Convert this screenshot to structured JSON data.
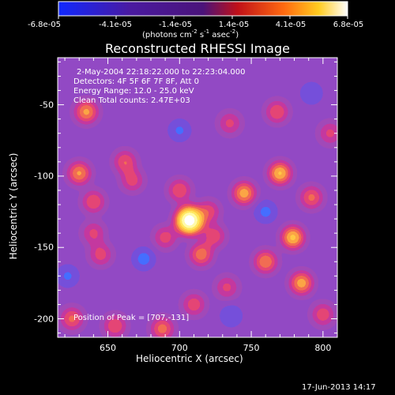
{
  "colorbar": {
    "ticks": [
      "-6.8e-05",
      "-4.1e-05",
      "-1.4e-05",
      "1.4e-05",
      "4.1e-05",
      "6.8e-05"
    ],
    "units": "(photons cm",
    "units_exp1": "-2",
    "units_mid": " s",
    "units_exp2": "-1",
    "units_end": " asec",
    "units_exp3": "-2",
    "units_close": ")"
  },
  "annotations": {
    "time": "2-May-2004 22:18:22.000 to 22:23:04.000",
    "detectors": "Detectors: 4F 5F 6F 7F 8F, Att 0",
    "energy": "Energy Range: 12.0 - 25.0 keV",
    "clean": "Clean    Total counts: 2.47E+03",
    "peak": "Position of Peak = [707,-131]"
  },
  "footer": {
    "date": "17-Jun-2013 14:17"
  },
  "chart_data": {
    "type": "heatmap",
    "title": "Reconstructed RHESSI Image",
    "xlabel": "Heliocentric X (arcsec)",
    "ylabel": "Heliocentric Y (arcsec)",
    "xlim": [
      615,
      810
    ],
    "ylim": [
      -213,
      -17
    ],
    "xticks": [
      650,
      700,
      750,
      800
    ],
    "yticks": [
      -50,
      -100,
      -150,
      -200
    ],
    "zlim": [
      -6.8e-05,
      6.8e-05
    ],
    "colormap": "blue-purple-red-yellow-white",
    "peak": [
      707,
      -131
    ],
    "colors": {
      "neg_max": "#1028ff",
      "neg_mid": "#4a1aa0",
      "zero": "#4a137a",
      "mid": "#e01010",
      "high": "#ff9a10",
      "max": "#ffffff"
    },
    "features": [
      {
        "name": "main-peak",
        "x": 707,
        "y": -131,
        "value": 6.8e-05
      },
      {
        "name": "source",
        "x": 700,
        "y": -110,
        "value": 3.6e-05
      },
      {
        "name": "source",
        "x": 715,
        "y": -155,
        "value": 4.2e-05
      },
      {
        "name": "source",
        "x": 724,
        "y": -142,
        "value": 3.4e-05
      },
      {
        "name": "source",
        "x": 690,
        "y": -143,
        "value": 3.2e-05
      },
      {
        "name": "source",
        "x": 745,
        "y": -112,
        "value": 4.8e-05
      },
      {
        "name": "source",
        "x": 770,
        "y": -98,
        "value": 5.2e-05
      },
      {
        "name": "source",
        "x": 792,
        "y": -115,
        "value": 3.8e-05
      },
      {
        "name": "source",
        "x": 630,
        "y": -98,
        "value": 4.5e-05
      },
      {
        "name": "source",
        "x": 640,
        "y": -118,
        "value": 3.6e-05
      },
      {
        "name": "source",
        "x": 635,
        "y": -55,
        "value": 4.6e-05
      },
      {
        "name": "source",
        "x": 662,
        "y": -90,
        "value": 3.6e-05
      },
      {
        "name": "source",
        "x": 667,
        "y": -103,
        "value": 3.2e-05
      },
      {
        "name": "source",
        "x": 735,
        "y": -63,
        "value": 3e-05
      },
      {
        "name": "source",
        "x": 768,
        "y": -55,
        "value": 3.6e-05
      },
      {
        "name": "source",
        "x": 779,
        "y": -143,
        "value": 5.3e-05
      },
      {
        "name": "source",
        "x": 760,
        "y": -160,
        "value": 4.4e-05
      },
      {
        "name": "source",
        "x": 785,
        "y": -175,
        "value": 4.8e-05
      },
      {
        "name": "source",
        "x": 800,
        "y": -197,
        "value": 3.4e-05
      },
      {
        "name": "source",
        "x": 645,
        "y": -155,
        "value": 3.2e-05
      },
      {
        "name": "source",
        "x": 640,
        "y": -140,
        "value": 3e-05
      },
      {
        "name": "source",
        "x": 625,
        "y": -200,
        "value": 3.8e-05
      },
      {
        "name": "source",
        "x": 655,
        "y": -205,
        "value": 3.6e-05
      },
      {
        "name": "source",
        "x": 688,
        "y": -207,
        "value": 4e-05
      },
      {
        "name": "source",
        "x": 710,
        "y": -190,
        "value": 3.4e-05
      },
      {
        "name": "source",
        "x": 733,
        "y": -178,
        "value": 3e-05
      },
      {
        "name": "source",
        "x": 805,
        "y": -70,
        "value": 3e-05
      },
      {
        "name": "source",
        "x": 720,
        "y": -125,
        "value": 3.4e-05
      },
      {
        "name": "negative",
        "x": 675,
        "y": -158,
        "value": -4.5e-05
      },
      {
        "name": "negative",
        "x": 760,
        "y": -125,
        "value": -4e-05
      },
      {
        "name": "negative",
        "x": 700,
        "y": -68,
        "value": -3.5e-05
      },
      {
        "name": "negative",
        "x": 622,
        "y": -170,
        "value": -3.5e-05
      },
      {
        "name": "negative",
        "x": 792,
        "y": -42,
        "value": -3e-05
      },
      {
        "name": "negative",
        "x": 736,
        "y": -198,
        "value": -3e-05
      }
    ]
  }
}
